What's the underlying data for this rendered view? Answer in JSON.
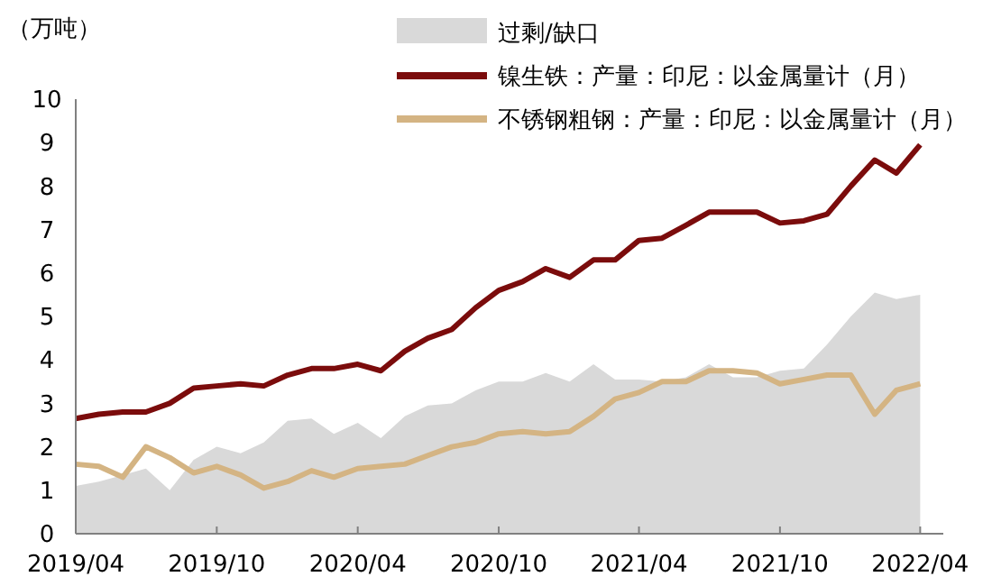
{
  "chart_data": {
    "type": "line",
    "ylabel": "（万吨）",
    "x": [
      "2019-04",
      "2019-05",
      "2019-06",
      "2019-07",
      "2019-08",
      "2019-09",
      "2019-10",
      "2019-11",
      "2019-12",
      "2020-01",
      "2020-02",
      "2020-03",
      "2020-04",
      "2020-05",
      "2020-06",
      "2020-07",
      "2020-08",
      "2020-09",
      "2020-10",
      "2020-11",
      "2020-12",
      "2021-01",
      "2021-02",
      "2021-03",
      "2021-04",
      "2021-05",
      "2021-06",
      "2021-07",
      "2021-08",
      "2021-09",
      "2021-10",
      "2021-11",
      "2021-12",
      "2022-01",
      "2022-02",
      "2022-03",
      "2022-04"
    ],
    "series": [
      {
        "name": "过剩/缺口",
        "type": "area",
        "color": "#d9d9d9",
        "values": [
          1.1,
          1.2,
          1.35,
          1.5,
          1.0,
          1.7,
          2.0,
          1.85,
          2.1,
          2.6,
          2.65,
          2.3,
          2.55,
          2.2,
          2.7,
          2.95,
          3.0,
          3.3,
          3.5,
          3.5,
          3.7,
          3.5,
          3.9,
          3.55,
          3.55,
          3.5,
          3.6,
          3.9,
          3.6,
          3.6,
          3.75,
          3.8,
          4.35,
          5.0,
          5.55,
          5.4,
          5.5
        ]
      },
      {
        "name": "镍生铁：产量：印尼：以金属量计（月）",
        "color": "#7b0c0c",
        "values": [
          2.65,
          2.75,
          2.8,
          2.8,
          3.0,
          3.35,
          3.4,
          3.45,
          3.4,
          3.65,
          3.8,
          3.8,
          3.9,
          3.75,
          4.2,
          4.5,
          4.7,
          5.2,
          5.6,
          5.8,
          6.1,
          5.9,
          6.3,
          6.3,
          6.75,
          6.8,
          7.1,
          7.4,
          7.4,
          7.4,
          7.15,
          7.2,
          7.35,
          8.0,
          8.6,
          8.3,
          8.95
        ]
      },
      {
        "name": "不锈钢粗钢：产量：印尼：以金属量计（月）",
        "color": "#d4b483",
        "values": [
          1.6,
          1.55,
          1.3,
          2.0,
          1.75,
          1.4,
          1.55,
          1.35,
          1.05,
          1.2,
          1.45,
          1.3,
          1.5,
          1.55,
          1.6,
          1.8,
          2.0,
          2.1,
          2.3,
          2.35,
          2.3,
          2.35,
          2.7,
          3.1,
          3.25,
          3.5,
          3.5,
          3.75,
          3.75,
          3.7,
          3.45,
          3.55,
          3.65,
          3.65,
          2.75,
          3.3,
          3.45
        ]
      }
    ],
    "xlim": [
      "2019-04",
      "2022-05"
    ],
    "xticks": [
      {
        "value": "2019-04",
        "label": "2019/04"
      },
      {
        "value": "2019-10",
        "label": "2019/10"
      },
      {
        "value": "2020-04",
        "label": "2020/04"
      },
      {
        "value": "2020-10",
        "label": "2020/10"
      },
      {
        "value": "2021-04",
        "label": "2021/04"
      },
      {
        "value": "2021-10",
        "label": "2021/10"
      },
      {
        "value": "2022-04",
        "label": "2022/04"
      }
    ],
    "ylim": [
      0,
      10
    ],
    "yticks": [
      0,
      1,
      2,
      3,
      4,
      5,
      6,
      7,
      8,
      9,
      10
    ],
    "grid": false,
    "legend": "top"
  }
}
